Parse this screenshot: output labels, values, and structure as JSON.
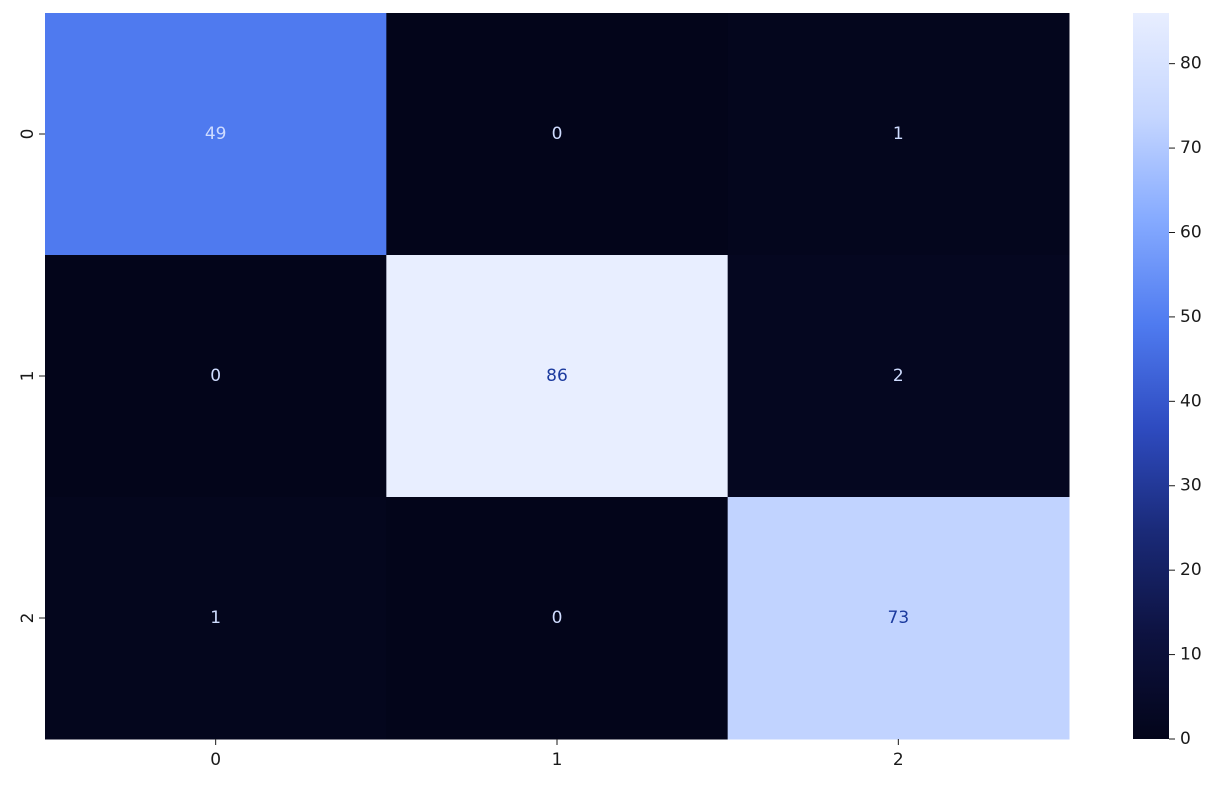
{
  "chart_data": {
    "type": "heatmap",
    "x_categories": [
      "0",
      "1",
      "2"
    ],
    "y_categories": [
      "0",
      "1",
      "2"
    ],
    "values": [
      [
        49,
        0,
        1
      ],
      [
        0,
        86,
        2
      ],
      [
        1,
        0,
        73
      ]
    ],
    "annotated": true,
    "title": "",
    "xlabel": "",
    "ylabel": "",
    "colorbar": {
      "range": [
        0,
        86
      ],
      "ticks": [
        0,
        10,
        20,
        30,
        40,
        50,
        60,
        70,
        80
      ],
      "placement": "right"
    },
    "colormap": [
      "#03051a",
      "#0d1240",
      "#1a2a78",
      "#2e4bc0",
      "#4f7bf0",
      "#85aaff",
      "#c5d6ff",
      "#e8eeff"
    ],
    "grid": false
  }
}
